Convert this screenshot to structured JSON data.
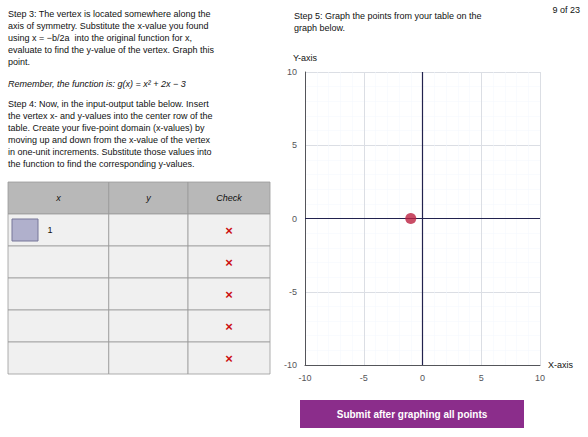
{
  "chart_data": {
    "type": "scatter",
    "x": [
      -1
    ],
    "values": [
      0
    ],
    "color": "#bb2040",
    "x_label": "X-axis",
    "y_label": "Y-axis",
    "xlim": [
      -10,
      10
    ],
    "ylim": [
      -10,
      10
    ],
    "xticks": [
      -10,
      -5,
      0,
      5,
      10
    ],
    "yticks": [
      -10,
      -5,
      0,
      5,
      10
    ],
    "grid": true,
    "annotations": [
      "Step 3: The vertex is located somewhere along the\naxis of symmetry. Substitute the x-value you found\nusing x = −b/2a  into the original function for x,\nevaluate to find the y-value of the vertex. Graph this\npoint.",
      "Remember, the function is: g(x) = x² + 2x − 3",
      "Step 4: Now, in the input-output table below. Insert\nthe vertex x- and y-values into the center row of the\ntable. Create your five-point domain (x-values) by\nmoving up and down from the x-value of the vertex\nin one-unit increments. Substitute those values into\nthe function to find the corresponding y-values.",
      "Step 5: Graph the points from your table on the\ngraph below.",
      "Submit after graphing all points",
      "9 of 23"
    ],
    "table": {
      "headers": [
        "x",
        "y",
        "Check"
      ],
      "rows": [
        [
          "1",
          null,
          "×"
        ],
        [
          null,
          null,
          "×"
        ],
        [
          null,
          null,
          "×"
        ],
        [
          null,
          null,
          "×"
        ],
        [
          null,
          null,
          "×"
        ]
      ],
      "color": "#cc1111"
    }
  }
}
